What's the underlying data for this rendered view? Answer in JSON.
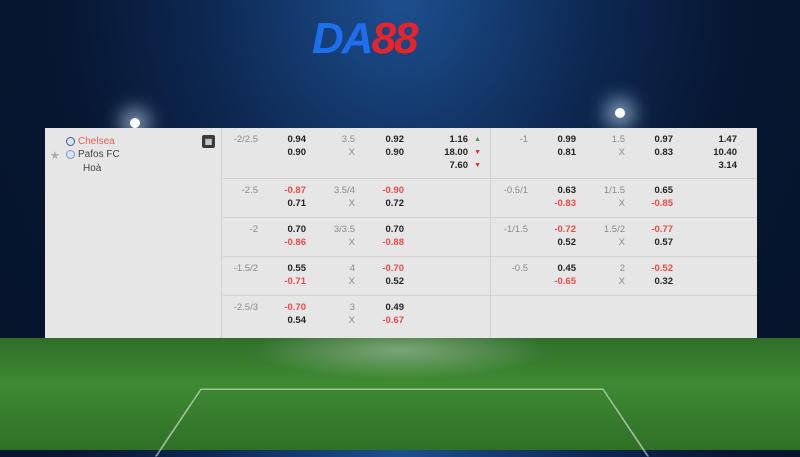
{
  "brand": {
    "logo_part1": "DA",
    "logo_part2": "88"
  },
  "match": {
    "home": "Chelsea",
    "away": "Pafos FC",
    "draw": "Hoà",
    "star_icon": "star-icon",
    "stats_icon": "stats-icon"
  },
  "rows": [
    {
      "ft": {
        "hdp": "-2/2.5",
        "home": "0.94",
        "away": "0.90",
        "ou": "3.5",
        "ou2": "X",
        "over": "0.92",
        "under": "0.90",
        "x12": [
          "1.16",
          "18.00",
          "7.60"
        ],
        "x12_trend": [
          "up",
          "down",
          "down"
        ]
      },
      "h1": {
        "hdp": "-1",
        "home": "0.99",
        "away": "0.81",
        "ou": "1.5",
        "ou2": "X",
        "over": "0.97",
        "under": "0.83",
        "x12": [
          "1.47",
          "10.40",
          "3.14"
        ]
      }
    },
    {
      "ft": {
        "hdp": "-2.5",
        "home": "-0.87",
        "away": "0.71",
        "ou": "3.5/4",
        "ou2": "X",
        "over": "-0.90",
        "under": "0.72"
      },
      "h1": {
        "hdp": "-0.5/1",
        "home": "0.63",
        "away": "-0.83",
        "ou": "1/1.5",
        "ou2": "X",
        "over": "0.65",
        "under": "-0.85"
      }
    },
    {
      "ft": {
        "hdp": "-2",
        "home": "0.70",
        "away": "-0.86",
        "ou": "3/3.5",
        "ou2": "X",
        "over": "0.70",
        "under": "-0.88"
      },
      "h1": {
        "hdp": "-1/1.5",
        "home": "-0.72",
        "away": "0.52",
        "ou": "1.5/2",
        "ou2": "X",
        "over": "-0.77",
        "under": "0.57"
      }
    },
    {
      "ft": {
        "hdp": "-1.5/2",
        "home": "0.55",
        "away": "-0.71",
        "ou": "4",
        "ou2": "X",
        "over": "-0.70",
        "under": "0.52"
      },
      "h1": {
        "hdp": "-0.5",
        "home": "0.45",
        "away": "-0.65",
        "ou": "2",
        "ou2": "X",
        "over": "-0.52",
        "under": "0.32"
      }
    },
    {
      "ft": {
        "hdp": "-2.5/3",
        "home": "-0.70",
        "away": "0.54",
        "ou": "3",
        "ou2": "X",
        "over": "0.49",
        "under": "-0.67"
      },
      "h1": null
    }
  ],
  "colors": {
    "negative": "#e84a4a",
    "positive": "#222222",
    "home_team": "#e85c5c",
    "logo_blue": "#1e6ff0",
    "logo_red": "#e8242a"
  }
}
